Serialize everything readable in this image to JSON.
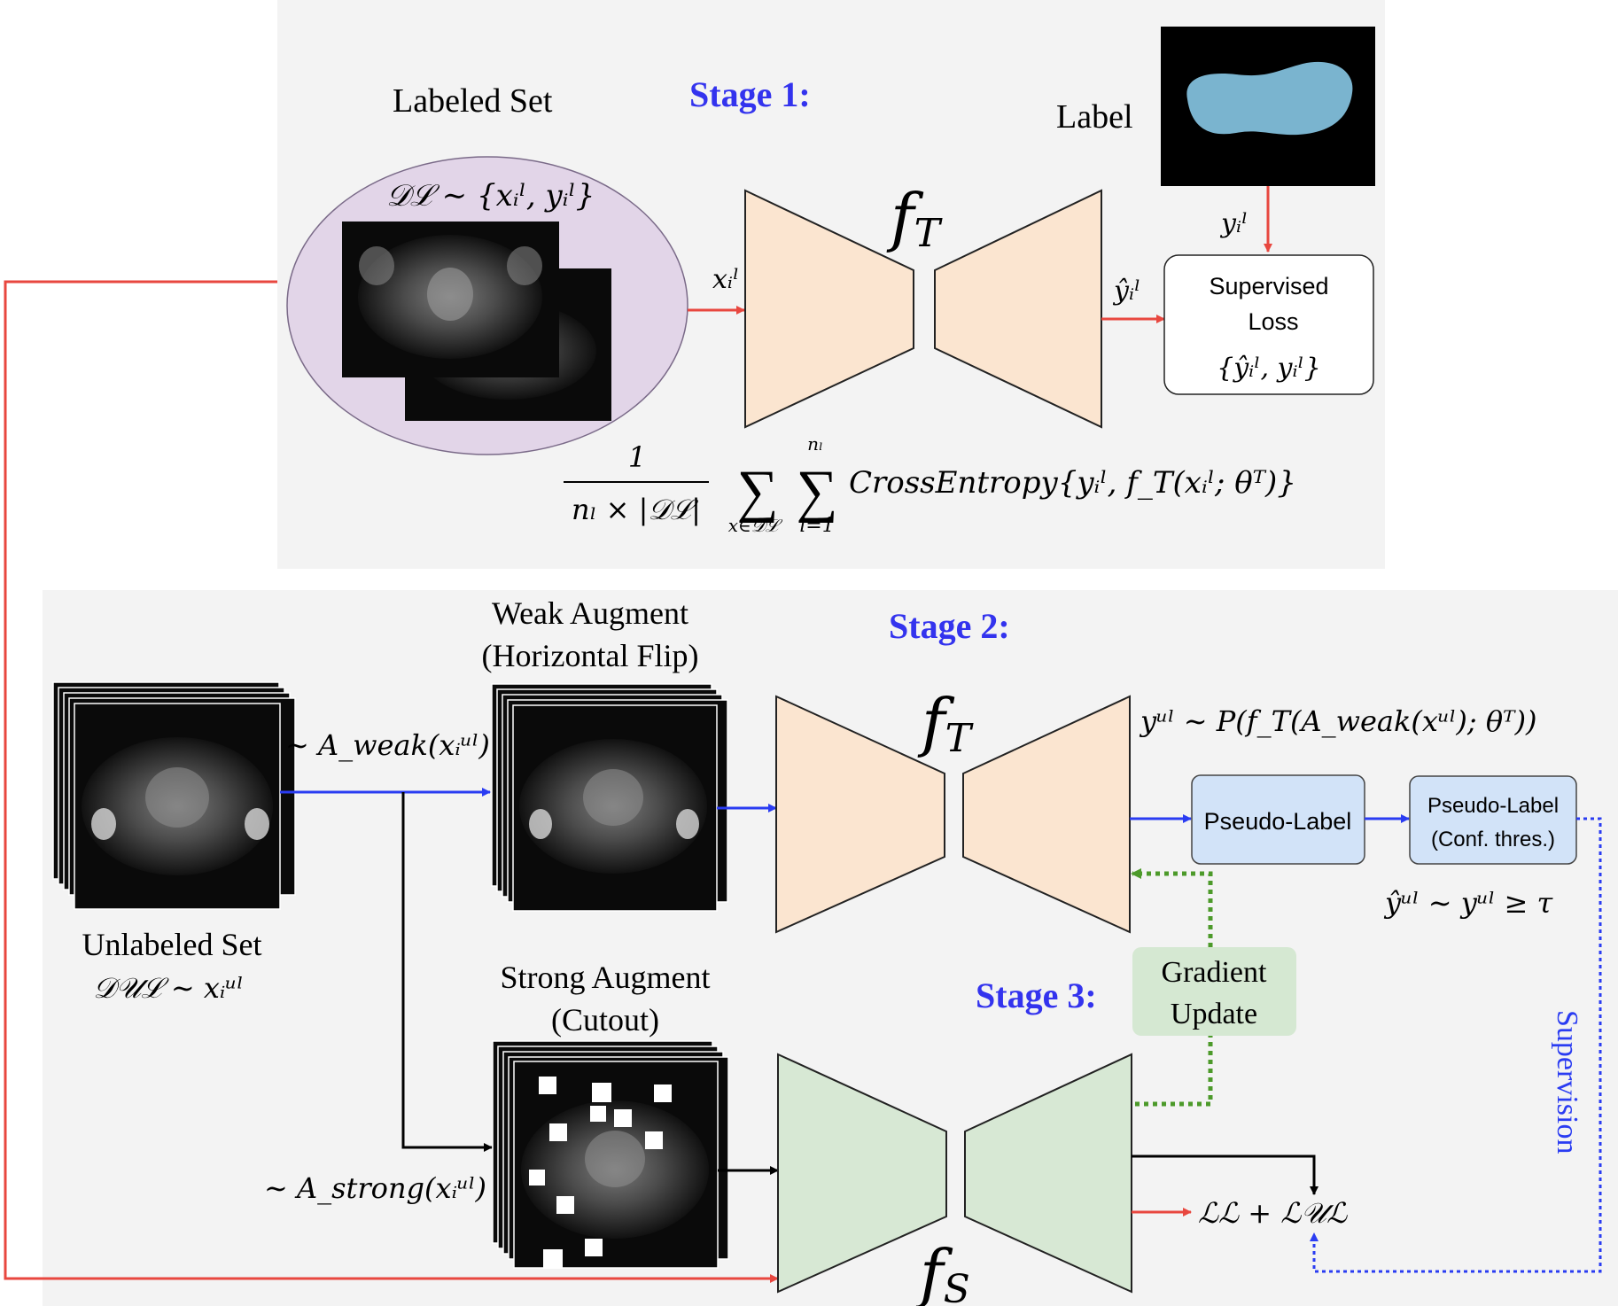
{
  "stage1": {
    "title": "Stage 1:",
    "labeled_set": "Labeled Set",
    "dataset_expr": "𝒟ℒ ∼ {xᵢˡ, yᵢˡ}",
    "input_expr": "xᵢˡ",
    "teacher": "f",
    "teacher_sub": "T",
    "pred_expr": "ŷᵢˡ",
    "label_title": "Label",
    "label_expr": "yᵢˡ",
    "loss_box": {
      "line1": "Supervised",
      "line2": "Loss",
      "line3": "{ŷᵢˡ, yᵢˡ}"
    },
    "formula": {
      "numerator": "1",
      "denominator": "nₗ × |𝒟ℒ|",
      "sum1_symbol": "∑",
      "sum1_sub": "x∈𝒟ℒ",
      "sum2_top": "nₗ",
      "sum2_symbol": "∑",
      "sum2_sub": "i=1",
      "body": "CrossEntropy{yᵢˡ, f_T(xᵢˡ; θᵀ)}"
    }
  },
  "stage2": {
    "title": "Stage 2:",
    "weak_title1": "Weak Augment",
    "weak_title2": "(Horizontal Flip)",
    "weak_expr": "∼ A_weak(xᵢᵘˡ)",
    "unlabeled_title": "Unlabeled Set",
    "unlabeled_expr": "𝒟𝒰ℒ ∼ xᵢᵘˡ",
    "teacher": "f",
    "teacher_sub": "T",
    "output_expr": "yᵘˡ ∼ P(f_T(A_weak(xᵘˡ); θᵀ))",
    "pseudo_label": "Pseudo-Label",
    "pseudo_conf1": "Pseudo-Label",
    "pseudo_conf2": "(Conf. thres.)",
    "threshold_expr": "ŷᵘˡ ∼ yᵘˡ ≥ τ"
  },
  "stage3": {
    "title": "Stage 3:",
    "strong_title1": "Strong Augment",
    "strong_title2": "(Cutout)",
    "strong_expr": "∼ A_strong(xᵢᵘˡ)",
    "gradient1": "Gradient",
    "gradient2": "Update",
    "student": "f",
    "student_sub": "S",
    "loss_expr": "ℒℒ + ℒ𝒰ℒ",
    "supervision": "Supervision"
  },
  "colors": {
    "red": "#e8473f",
    "blue": "#2a3cf2",
    "green": "#4c9a2a",
    "teacher_fill": "#fbe5d0",
    "student_fill": "#d7e8d4",
    "labeled_ellipse": "#e2d5e8",
    "pseudo_fill": "#d2e3f8",
    "gradient_fill": "#d5e8d2",
    "label_blob": "#7ab4cf",
    "panel_bg": "#f3f3f3"
  }
}
